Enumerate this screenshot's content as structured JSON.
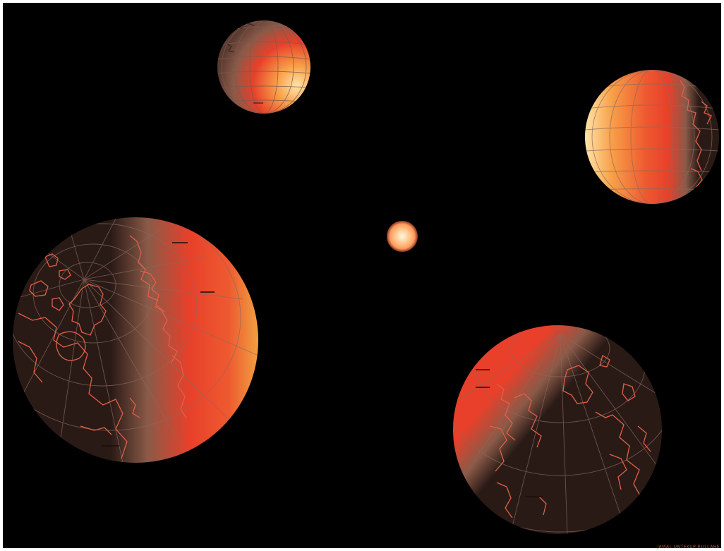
{
  "scene": {
    "background_color": "#000000",
    "frame_color": "#ffffff",
    "sun": {
      "color_core": "#fff6e0",
      "color_mid": "#ffb064",
      "color_edge": "#e8603a"
    },
    "globe_colors": {
      "night": "#2a1a16",
      "terminator": "#8a5a48",
      "day_red": "#e8402a",
      "day_orange": "#f0a040",
      "highlight": "#ffe4a8",
      "coastline": "#e06048",
      "graticule": "#9a7a70"
    },
    "globes": [
      {
        "label": "globe-top",
        "lit_side": "right"
      },
      {
        "label": "globe-upper-right",
        "lit_side": "left"
      },
      {
        "label": "globe-left",
        "lit_side": "right"
      },
      {
        "label": "globe-lower-right",
        "lit_side": "top-left"
      }
    ],
    "credit_text": "JAMAL UNTEKUP RULLAHE"
  }
}
